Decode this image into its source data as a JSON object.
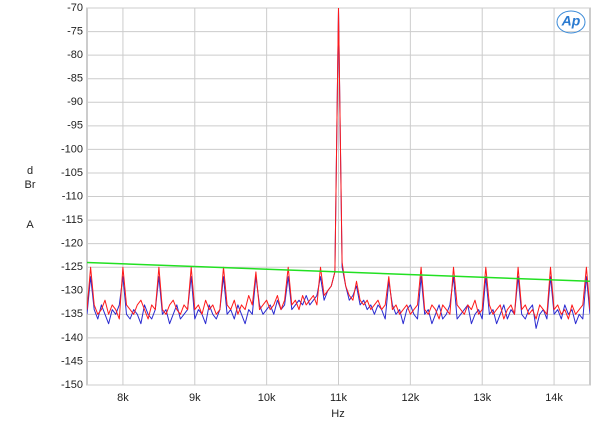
{
  "chart_data": {
    "type": "line",
    "logo": "Ap",
    "x_label": "Hz",
    "y_label": [
      "dBr",
      "A"
    ],
    "xlim": [
      7500,
      14500
    ],
    "xticks": [
      {
        "value": 8000,
        "label": "8k"
      },
      {
        "value": 9000,
        "label": "9k"
      },
      {
        "value": 10000,
        "label": "10k"
      },
      {
        "value": 11000,
        "label": "11k"
      },
      {
        "value": 12000,
        "label": "12k"
      },
      {
        "value": 13000,
        "label": "13k"
      },
      {
        "value": 14000,
        "label": "14k"
      }
    ],
    "ylim": [
      -150,
      -70
    ],
    "yticks": [
      -150,
      -145,
      -140,
      -135,
      -130,
      -125,
      -120,
      -115,
      -110,
      -105,
      -100,
      -95,
      -90,
      -85,
      -80,
      -75,
      -70
    ],
    "grid": true,
    "x": [
      7500,
      7550,
      7600,
      7650,
      7700,
      7750,
      7800,
      7850,
      7900,
      7950,
      8000,
      8050,
      8100,
      8150,
      8200,
      8250,
      8300,
      8350,
      8400,
      8450,
      8500,
      8550,
      8600,
      8650,
      8700,
      8750,
      8800,
      8850,
      8900,
      8950,
      9000,
      9050,
      9100,
      9150,
      9200,
      9250,
      9300,
      9350,
      9400,
      9450,
      9500,
      9550,
      9600,
      9650,
      9700,
      9750,
      9800,
      9850,
      9900,
      9950,
      10000,
      10050,
      10100,
      10150,
      10200,
      10250,
      10300,
      10350,
      10400,
      10450,
      10500,
      10550,
      10600,
      10650,
      10700,
      10750,
      10800,
      10850,
      10900,
      10950,
      11000,
      11050,
      11100,
      11150,
      11200,
      11250,
      11300,
      11350,
      11400,
      11450,
      11500,
      11550,
      11600,
      11650,
      11700,
      11750,
      11800,
      11850,
      11900,
      11950,
      12000,
      12050,
      12100,
      12150,
      12200,
      12250,
      12300,
      12350,
      12400,
      12450,
      12500,
      12550,
      12600,
      12650,
      12700,
      12750,
      12800,
      12850,
      12900,
      12950,
      13000,
      13050,
      13100,
      13150,
      13200,
      13250,
      13300,
      13350,
      13400,
      13450,
      13500,
      13550,
      13600,
      13650,
      13700,
      13750,
      13800,
      13850,
      13900,
      13950,
      14000,
      14050,
      14100,
      14150,
      14200,
      14250,
      14300,
      14350,
      14400,
      14450,
      14500
    ],
    "series": [
      {
        "color": "#2a2ad0",
        "values": [
          -135,
          -127,
          -134,
          -136,
          -133,
          -135,
          -137,
          -134,
          -135,
          -133,
          -127,
          -135,
          -136,
          -134,
          -135,
          -137,
          -133,
          -135,
          -136,
          -134,
          -127,
          -135,
          -134,
          -137,
          -135,
          -133,
          -136,
          -135,
          -134,
          -127,
          -136,
          -134,
          -135,
          -137,
          -133,
          -135,
          -136,
          -134,
          -127,
          -135,
          -134,
          -136,
          -133,
          -135,
          -137,
          -134,
          -135,
          -127,
          -133,
          -135,
          -134,
          -133,
          -135,
          -132,
          -134,
          -133,
          -127,
          -134,
          -133,
          -132,
          -133,
          -131,
          -133,
          -132,
          -131,
          -127,
          -132,
          -130,
          -129,
          -126,
          -70,
          -125,
          -129,
          -132,
          -131,
          -129,
          -133,
          -132,
          -134,
          -133,
          -135,
          -133,
          -134,
          -136,
          -128,
          -133,
          -135,
          -134,
          -137,
          -134,
          -133,
          -135,
          -136,
          -127,
          -135,
          -134,
          -137,
          -135,
          -133,
          -136,
          -135,
          -133,
          -127,
          -136,
          -135,
          -134,
          -133,
          -137,
          -135,
          -134,
          -136,
          -127,
          -135,
          -134,
          -137,
          -135,
          -133,
          -136,
          -134,
          -135,
          -127,
          -135,
          -136,
          -134,
          -133,
          -138,
          -135,
          -134,
          -136,
          -127,
          -135,
          -134,
          -136,
          -133,
          -135,
          -134,
          -137,
          -135,
          -136,
          -127,
          -135
        ]
      },
      {
        "color": "#ff1a1a",
        "values": [
          -134,
          -125,
          -133,
          -135,
          -134,
          -132,
          -135,
          -133,
          -134,
          -136,
          -125,
          -133,
          -134,
          -135,
          -133,
          -132,
          -134,
          -136,
          -133,
          -134,
          -125,
          -134,
          -135,
          -133,
          -132,
          -134,
          -135,
          -133,
          -134,
          -125,
          -134,
          -133,
          -135,
          -132,
          -134,
          -133,
          -135,
          -134,
          -125,
          -133,
          -134,
          -132,
          -135,
          -133,
          -134,
          -131,
          -133,
          -126,
          -134,
          -133,
          -132,
          -134,
          -133,
          -131,
          -134,
          -132,
          -125,
          -133,
          -132,
          -134,
          -131,
          -133,
          -132,
          -131,
          -133,
          -125,
          -131,
          -130,
          -129,
          -126,
          -70,
          -124,
          -129,
          -131,
          -132,
          -128,
          -132,
          -133,
          -132,
          -134,
          -133,
          -132,
          -134,
          -133,
          -127,
          -134,
          -133,
          -135,
          -134,
          -133,
          -135,
          -134,
          -133,
          -125,
          -134,
          -135,
          -133,
          -134,
          -136,
          -133,
          -134,
          -135,
          -125,
          -133,
          -134,
          -135,
          -133,
          -134,
          -132,
          -135,
          -134,
          -125,
          -133,
          -135,
          -134,
          -133,
          -136,
          -134,
          -133,
          -135,
          -125,
          -134,
          -133,
          -135,
          -134,
          -136,
          -133,
          -134,
          -135,
          -125,
          -134,
          -133,
          -135,
          -134,
          -136,
          -133,
          -135,
          -134,
          -133,
          -125,
          -134
        ]
      },
      {
        "color": "#22e022",
        "x": [
          7500,
          14500
        ],
        "values": [
          -124,
          -128
        ]
      }
    ]
  }
}
